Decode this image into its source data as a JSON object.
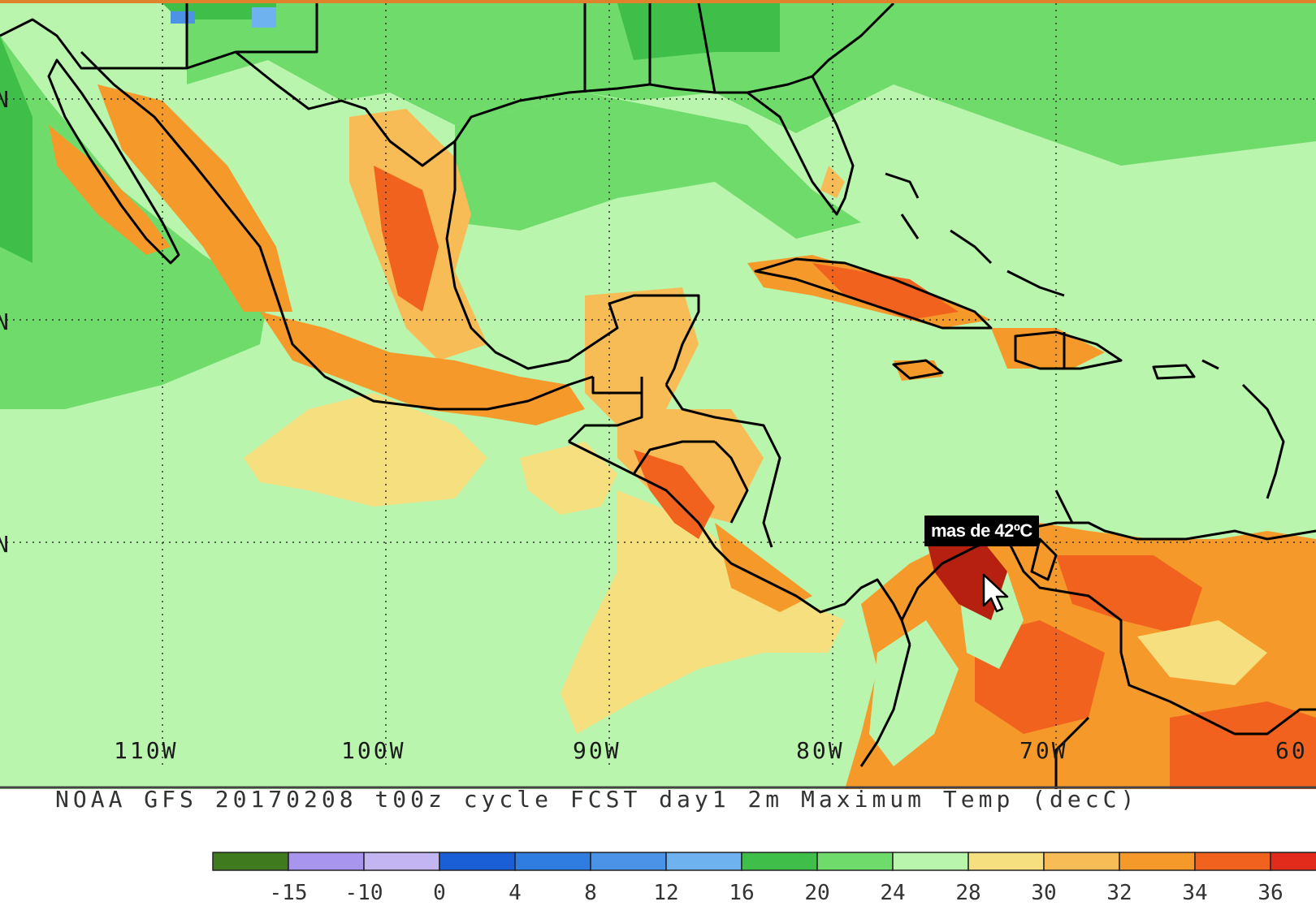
{
  "caption": "NOAA GFS 20170208 t00z cycle FCST day1 2m Maximum Temp (decC)",
  "tooltip": "mas de 42ºC",
  "longitude_labels": [
    {
      "text": "110W",
      "lon": -110
    },
    {
      "text": "100W",
      "lon": -100
    },
    {
      "text": "90W",
      "lon": -90
    },
    {
      "text": "80W",
      "lon": -80
    },
    {
      "text": "70W",
      "lon": -70
    },
    {
      "text": "60",
      "lon": -60
    }
  ],
  "latitude_labels": [
    "N",
    "N",
    "N"
  ],
  "color_scale": {
    "swatches": [
      "#3f7a1e",
      "#a895ee",
      "#c3b4f2",
      "#1a5fd6",
      "#2f7de0",
      "#4b93e6",
      "#6fb2f0",
      "#3fbf4a",
      "#6fdb6a",
      "#b9f5ad",
      "#f6df7e",
      "#f7bc56",
      "#f59a2a",
      "#f0621e",
      "#e22b1a"
    ],
    "tick_labels": [
      "-15",
      "-10",
      "0",
      "4",
      "8",
      "12",
      "16",
      "20",
      "24",
      "28",
      "30",
      "32",
      "34",
      "36"
    ]
  },
  "colors": {
    "ocean": "#b9f5ad",
    "cool_land": "#6fdb6a",
    "cooler": "#3fbf4a",
    "warm": "#f6df7e",
    "hot": "#f59a2a",
    "very_hot": "#f0621e",
    "extreme": "#b52010",
    "border": "#000000"
  }
}
